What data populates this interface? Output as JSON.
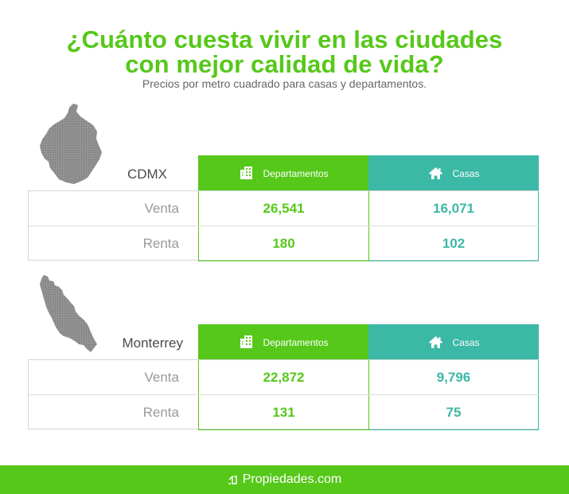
{
  "title_line_1": "¿Cuánto cuesta vivir en las ciudades",
  "title_line_2": "con mejor calidad de vida?",
  "subtitle": "Precios por metro cuadrado para casas y departamentos.",
  "colors": {
    "green": "#56c81a",
    "teal": "#3cb8a6",
    "gray_label": "#9a9a9a",
    "map_gray": "#8c8c8c"
  },
  "icons": {
    "departamentos": "building-icon",
    "casas": "house-icon",
    "footer_logo": "propiedades-logo-icon",
    "cdmx_map": "cdmx-map-icon",
    "monterrey_map": "monterrey-map-icon"
  },
  "sections": [
    {
      "city": "CDMX",
      "headers": {
        "departamentos": "Departamentos",
        "casas": "Casas"
      },
      "rows": [
        {
          "label": "Venta",
          "departamentos": "26,541",
          "casas": "16,071"
        },
        {
          "label": "Renta",
          "departamentos": "180",
          "casas": "102"
        }
      ]
    },
    {
      "city": "Monterrey",
      "headers": {
        "departamentos": "Departamentos",
        "casas": "Casas"
      },
      "rows": [
        {
          "label": "Venta",
          "departamentos": "22,872",
          "casas": "9,796"
        },
        {
          "label": "Renta",
          "departamentos": "131",
          "casas": "75"
        }
      ]
    }
  ],
  "footer": {
    "brand": "Propiedades.com"
  }
}
